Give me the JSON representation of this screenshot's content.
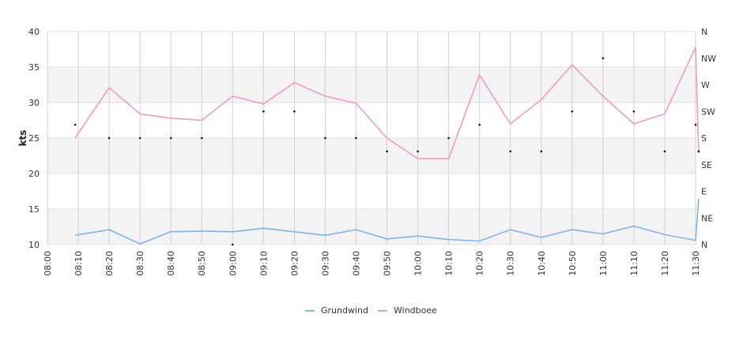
{
  "chart_data": {
    "type": "line",
    "title": "",
    "xlabel": "",
    "ylabel": "kts",
    "ylim": [
      10,
      40
    ],
    "y_ticks": [
      "10",
      "15",
      "20",
      "25",
      "30",
      "35",
      "40"
    ],
    "x_ticks": [
      "08:00",
      "08:10",
      "08:20",
      "08:30",
      "08:40",
      "08:50",
      "09:00",
      "09:10",
      "09:20",
      "09:30",
      "09:40",
      "09:50",
      "10:00",
      "10:10",
      "10:20",
      "10:30",
      "10:40",
      "10:50",
      "11:00",
      "11:10",
      "11:20",
      "11:30"
    ],
    "x": [
      "08:09",
      "08:20",
      "08:30",
      "08:40",
      "08:50",
      "09:00",
      "09:10",
      "09:20",
      "09:30",
      "09:40",
      "09:50",
      "10:00",
      "10:10",
      "10:20",
      "10:30",
      "10:40",
      "10:50",
      "11:00",
      "11:10",
      "11:20",
      "11:30",
      "11:31"
    ],
    "series": [
      {
        "name": "Grundwind",
        "color": "#7cb5ec",
        "values": [
          11.3,
          12.1,
          10.1,
          11.8,
          11.9,
          11.8,
          12.3,
          11.8,
          11.3,
          12.1,
          10.8,
          11.2,
          10.7,
          10.5,
          12.1,
          11.0,
          12.1,
          11.5,
          12.6,
          11.4,
          10.6,
          16.5
        ]
      },
      {
        "name": "Windboee",
        "color": "#f49ac2",
        "values": [
          25.0,
          32.1,
          28.4,
          27.8,
          27.5,
          30.9,
          29.8,
          32.8,
          30.9,
          29.9,
          25.0,
          22.1,
          22.1,
          33.9,
          27.0,
          30.4,
          35.3,
          30.9,
          27.0,
          28.4,
          37.8,
          22.9
        ]
      }
    ],
    "direction_axis": {
      "labels": [
        "N",
        "NE",
        "E",
        "SE",
        "S",
        "SW",
        "W",
        "NW",
        "N"
      ]
    },
    "direction_points": [
      {
        "x": "08:09",
        "dir": "SSW"
      },
      {
        "x": "08:20",
        "dir": "S"
      },
      {
        "x": "08:30",
        "dir": "S"
      },
      {
        "x": "08:40",
        "dir": "S"
      },
      {
        "x": "08:50",
        "dir": "S"
      },
      {
        "x": "09:00",
        "dir": "N"
      },
      {
        "x": "09:10",
        "dir": "SW"
      },
      {
        "x": "09:20",
        "dir": "SW"
      },
      {
        "x": "09:30",
        "dir": "S"
      },
      {
        "x": "09:40",
        "dir": "S"
      },
      {
        "x": "09:50",
        "dir": "SSE"
      },
      {
        "x": "10:00",
        "dir": "SSE"
      },
      {
        "x": "10:10",
        "dir": "S"
      },
      {
        "x": "10:20",
        "dir": "SSW"
      },
      {
        "x": "10:30",
        "dir": "SSE"
      },
      {
        "x": "10:40",
        "dir": "SSE"
      },
      {
        "x": "10:50",
        "dir": "SW"
      },
      {
        "x": "11:00",
        "dir": "NW"
      },
      {
        "x": "11:10",
        "dir": "SW"
      },
      {
        "x": "11:20",
        "dir": "SSE"
      },
      {
        "x": "11:30",
        "dir": "SSW"
      },
      {
        "x": "11:31",
        "dir": "SSE"
      }
    ],
    "grid": true,
    "legend_position": "bottom-center"
  }
}
